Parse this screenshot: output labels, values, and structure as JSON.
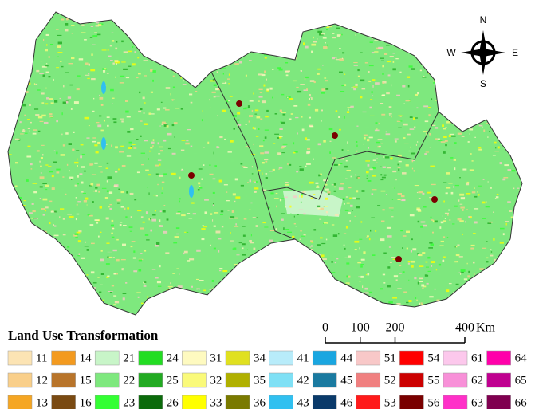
{
  "title": "Land Use Transformation",
  "legend": [
    {
      "code": "11",
      "color": "#fce4b4"
    },
    {
      "code": "12",
      "color": "#f9cf8a"
    },
    {
      "code": "13",
      "color": "#f5a623"
    },
    {
      "code": "14",
      "color": "#f39a1f"
    },
    {
      "code": "15",
      "color": "#b8742a"
    },
    {
      "code": "16",
      "color": "#7a4a12"
    },
    {
      "code": "21",
      "color": "#c8f5c8"
    },
    {
      "code": "22",
      "color": "#7ee87e"
    },
    {
      "code": "23",
      "color": "#33ff33"
    },
    {
      "code": "24",
      "color": "#22dd22"
    },
    {
      "code": "25",
      "color": "#22aa22"
    },
    {
      "code": "26",
      "color": "#0b6b0b"
    },
    {
      "code": "31",
      "color": "#fefac0"
    },
    {
      "code": "32",
      "color": "#fafa7a"
    },
    {
      "code": "33",
      "color": "#ffff00"
    },
    {
      "code": "34",
      "color": "#e0e020"
    },
    {
      "code": "35",
      "color": "#b0b000"
    },
    {
      "code": "36",
      "color": "#7a7a00"
    },
    {
      "code": "41",
      "color": "#b8ecfa"
    },
    {
      "code": "42",
      "color": "#7fe0f5"
    },
    {
      "code": "43",
      "color": "#30c0f0"
    },
    {
      "code": "44",
      "color": "#1aa6e0"
    },
    {
      "code": "45",
      "color": "#1a7aa0"
    },
    {
      "code": "46",
      "color": "#0a3a6a"
    },
    {
      "code": "51",
      "color": "#f8c8c8"
    },
    {
      "code": "52",
      "color": "#f08080"
    },
    {
      "code": "53",
      "color": "#ff1a1a"
    },
    {
      "code": "54",
      "color": "#ff0000"
    },
    {
      "code": "55",
      "color": "#cc0000"
    },
    {
      "code": "56",
      "color": "#7a0000"
    },
    {
      "code": "61",
      "color": "#fcc8ec"
    },
    {
      "code": "62",
      "color": "#f890d8"
    },
    {
      "code": "63",
      "color": "#ff30c8"
    },
    {
      "code": "64",
      "color": "#ff00aa"
    },
    {
      "code": "65",
      "color": "#c00090"
    },
    {
      "code": "66",
      "color": "#800050"
    }
  ],
  "scale_bar": {
    "ticks": [
      0,
      100,
      200,
      400
    ],
    "unit": "Km"
  },
  "compass": {
    "north": "N",
    "south": "S",
    "east": "E",
    "west": "W"
  }
}
